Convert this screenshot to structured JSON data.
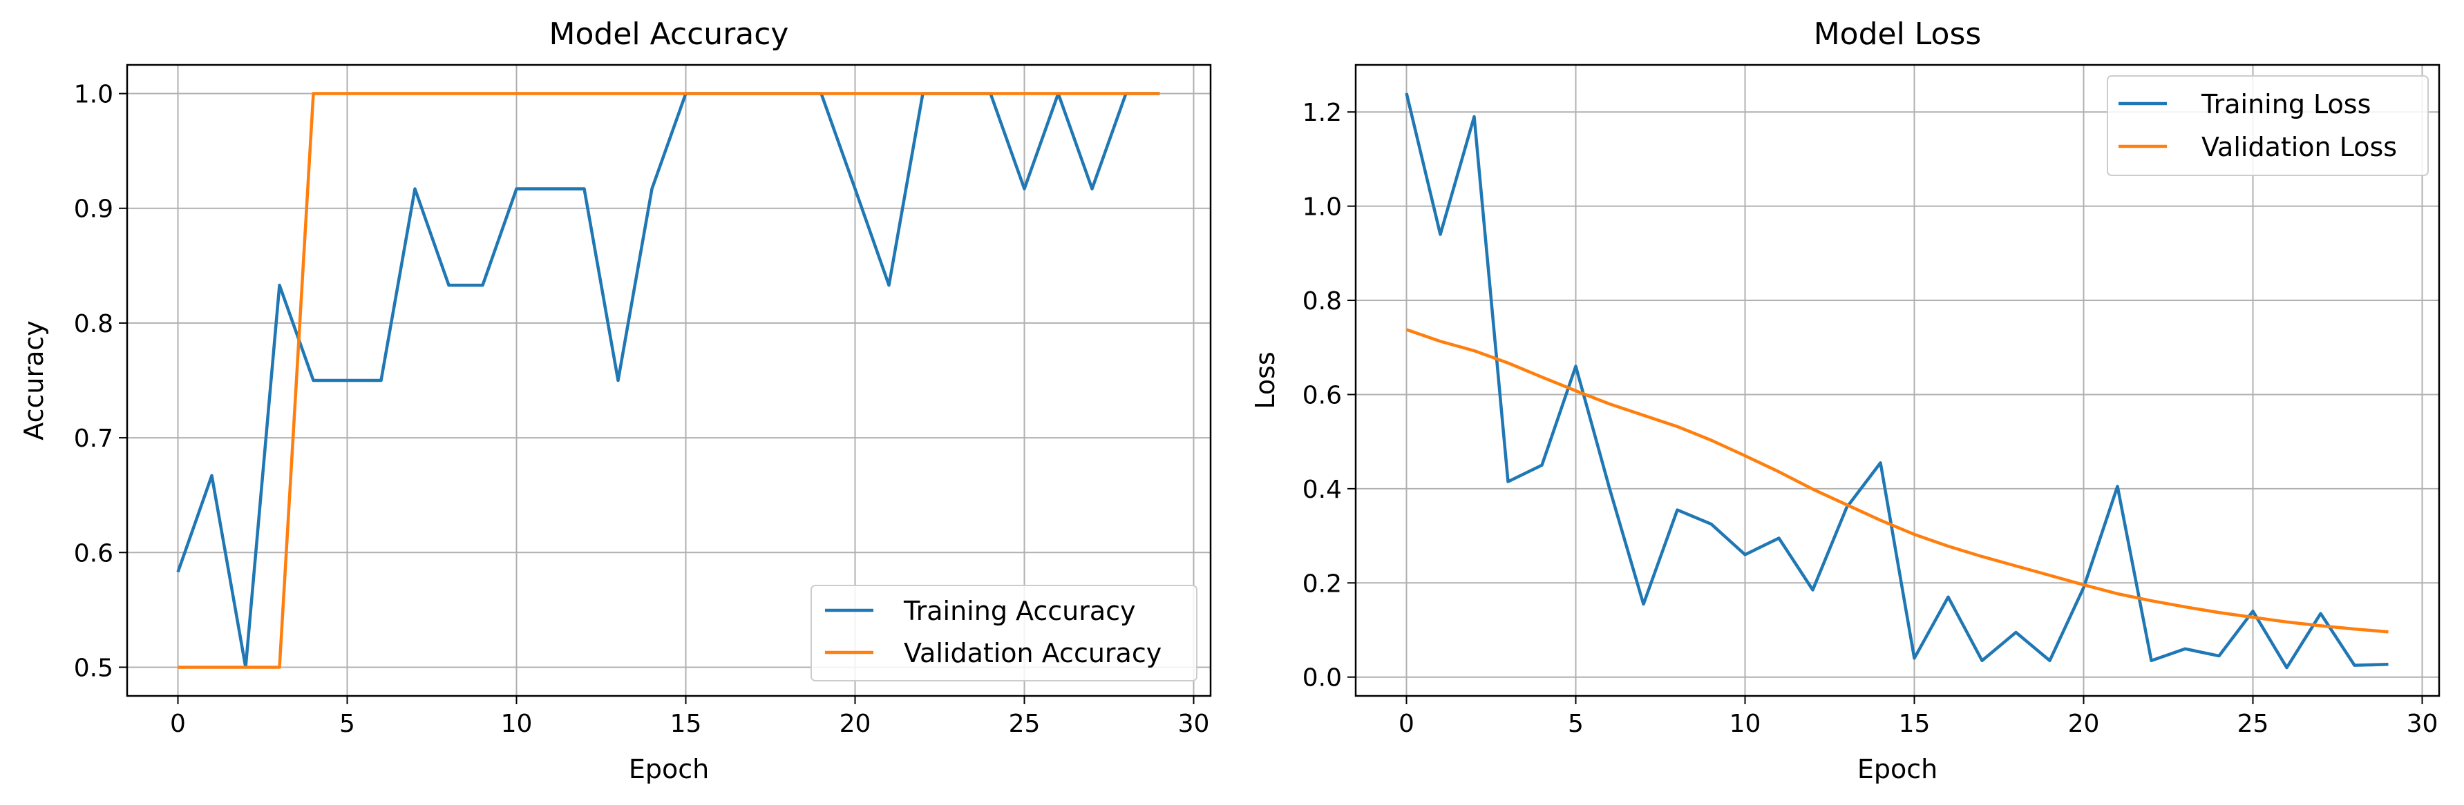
{
  "chart_data": [
    {
      "type": "line",
      "title": "Model Accuracy",
      "xlabel": "Epoch",
      "ylabel": "Accuracy",
      "xlim": [
        -1.5,
        30.5
      ],
      "ylim": [
        0.475,
        1.025
      ],
      "xticks": [
        0,
        5,
        10,
        15,
        20,
        25,
        30
      ],
      "yticks": [
        0.5,
        0.6,
        0.7,
        0.8,
        0.9,
        1.0
      ],
      "xtick_labels": [
        "0",
        "5",
        "10",
        "15",
        "20",
        "25",
        "30"
      ],
      "ytick_labels": [
        "0.5",
        "0.6",
        "0.7",
        "0.8",
        "0.9",
        "1.0"
      ],
      "grid": true,
      "legend_position": "lower-right",
      "x": [
        0,
        1,
        2,
        3,
        4,
        5,
        6,
        7,
        8,
        9,
        10,
        11,
        12,
        13,
        14,
        15,
        16,
        17,
        18,
        19,
        20,
        21,
        22,
        23,
        24,
        25,
        26,
        27,
        28,
        29
      ],
      "series": [
        {
          "name": "Training Accuracy",
          "color": "#1f77b4",
          "values": [
            0.583,
            0.667,
            0.5,
            0.833,
            0.75,
            0.75,
            0.75,
            0.917,
            0.833,
            0.833,
            0.917,
            0.917,
            0.917,
            0.75,
            0.917,
            1.0,
            1.0,
            1.0,
            1.0,
            1.0,
            0.917,
            0.833,
            1.0,
            1.0,
            1.0,
            0.917,
            1.0,
            0.917,
            1.0,
            1.0
          ]
        },
        {
          "name": "Validation Accuracy",
          "color": "#ff7f0e",
          "values": [
            0.5,
            0.5,
            0.5,
            0.5,
            1.0,
            1.0,
            1.0,
            1.0,
            1.0,
            1.0,
            1.0,
            1.0,
            1.0,
            1.0,
            1.0,
            1.0,
            1.0,
            1.0,
            1.0,
            1.0,
            1.0,
            1.0,
            1.0,
            1.0,
            1.0,
            1.0,
            1.0,
            1.0,
            1.0,
            1.0
          ]
        }
      ]
    },
    {
      "type": "line",
      "title": "Model Loss",
      "xlabel": "Epoch",
      "ylabel": "Loss",
      "xlim": [
        -1.5,
        30.5
      ],
      "ylim": [
        -0.04,
        1.3
      ],
      "xticks": [
        0,
        5,
        10,
        15,
        20,
        25,
        30
      ],
      "yticks": [
        0.0,
        0.2,
        0.4,
        0.6,
        0.8,
        1.0,
        1.2
      ],
      "xtick_labels": [
        "0",
        "5",
        "10",
        "15",
        "20",
        "25",
        "30"
      ],
      "ytick_labels": [
        "0.0",
        "0.2",
        "0.4",
        "0.6",
        "0.8",
        "1.0",
        "1.2"
      ],
      "grid": true,
      "legend_position": "upper-right",
      "x": [
        0,
        1,
        2,
        3,
        4,
        5,
        6,
        7,
        8,
        9,
        10,
        11,
        12,
        13,
        14,
        15,
        16,
        17,
        18,
        19,
        20,
        21,
        22,
        23,
        24,
        25,
        26,
        27,
        28,
        29
      ],
      "series": [
        {
          "name": "Training Loss",
          "color": "#1f77b4",
          "values": [
            1.24,
            0.94,
            1.19,
            0.415,
            0.45,
            0.66,
            0.4,
            0.155,
            0.355,
            0.325,
            0.26,
            0.295,
            0.185,
            0.36,
            0.455,
            0.04,
            0.17,
            0.035,
            0.095,
            0.035,
            0.19,
            0.405,
            0.035,
            0.06,
            0.045,
            0.14,
            0.02,
            0.135,
            0.025,
            0.027
          ]
        },
        {
          "name": "Validation Loss",
          "color": "#ff7f0e",
          "values": [
            0.738,
            0.713,
            0.693,
            0.667,
            0.637,
            0.608,
            0.58,
            0.556,
            0.532,
            0.503,
            0.47,
            0.436,
            0.399,
            0.366,
            0.333,
            0.303,
            0.278,
            0.256,
            0.236,
            0.216,
            0.196,
            0.177,
            0.162,
            0.149,
            0.137,
            0.127,
            0.117,
            0.109,
            0.102,
            0.096
          ]
        }
      ]
    }
  ]
}
